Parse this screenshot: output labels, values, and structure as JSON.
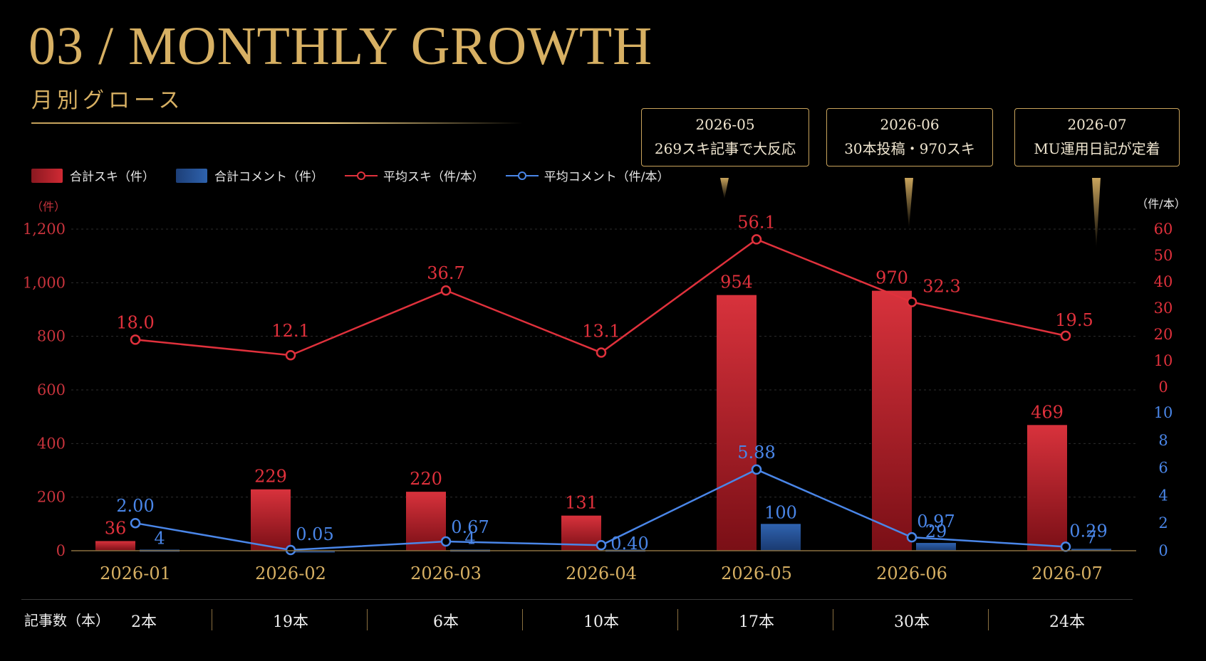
{
  "header": {
    "title": "03 / MONTHLY GROWTH",
    "subtitle": "月別グロース"
  },
  "legend": {
    "bar_likes": "合計スキ（件）",
    "bar_comments": "合計コメント（件）",
    "line_likes": "平均スキ（件/本）",
    "line_comments": "平均コメント（件/本）"
  },
  "callouts": [
    {
      "month": "2026-05",
      "text": "269スキ記事で大反応"
    },
    {
      "month": "2026-06",
      "text": "30本投稿・970スキ"
    },
    {
      "month": "2026-07",
      "text": "MU運用日記が定着"
    }
  ],
  "footer": {
    "label": "記事数（本）",
    "counts": [
      "2本",
      "19本",
      "6本",
      "10本",
      "17本",
      "30本",
      "24本"
    ]
  },
  "colors": {
    "gold": "#d7b063",
    "red": "#e0313c",
    "blue": "#4a86e8",
    "bar_red": "#c0252f",
    "bar_blue": "#2a5aa0"
  },
  "chart_data": {
    "type": "bar",
    "categories": [
      "2026-01",
      "2026-02",
      "2026-03",
      "2026-04",
      "2026-05",
      "2026-06",
      "2026-07"
    ],
    "left_axis": {
      "unit": "（件）",
      "ticks": [
        "0",
        "200",
        "400",
        "600",
        "800",
        "1,000",
        "1,200"
      ],
      "ylim": [
        0,
        1200
      ]
    },
    "right_axis_likes": {
      "unit": "（件/本）",
      "ticks": [
        "0",
        "10",
        "20",
        "30",
        "40",
        "50",
        "60"
      ],
      "ylim": [
        0,
        60
      ]
    },
    "right_axis_comments": {
      "ticks": [
        "0",
        "2",
        "4",
        "6",
        "8",
        "10"
      ],
      "ylim": [
        0,
        10
      ]
    },
    "series": [
      {
        "name": "合計スキ（件）",
        "kind": "bar",
        "values": [
          36,
          229,
          220,
          131,
          954,
          970,
          469
        ],
        "labels": [
          "36",
          "229",
          "220",
          "131",
          "954",
          "970",
          "469"
        ]
      },
      {
        "name": "合計コメント（件）",
        "kind": "bar",
        "values": [
          4,
          1,
          4,
          4,
          100,
          29,
          7
        ],
        "labels": [
          "4",
          "",
          "4",
          "",
          "100",
          "29",
          "7"
        ]
      },
      {
        "name": "平均スキ（件/本）",
        "kind": "line",
        "values": [
          18.0,
          12.1,
          36.7,
          13.1,
          56.1,
          32.3,
          19.5
        ],
        "labels": [
          "18.0",
          "12.1",
          "36.7",
          "13.1",
          "56.1",
          "32.3",
          "19.5"
        ]
      },
      {
        "name": "平均コメント（件/本）",
        "kind": "line",
        "values": [
          2.0,
          0.05,
          0.67,
          0.4,
          5.88,
          0.97,
          0.29
        ],
        "labels": [
          "2.00",
          "0.05",
          "0.67",
          "0.40",
          "5.88",
          "0.97",
          "0.29"
        ]
      }
    ],
    "grid": true
  }
}
